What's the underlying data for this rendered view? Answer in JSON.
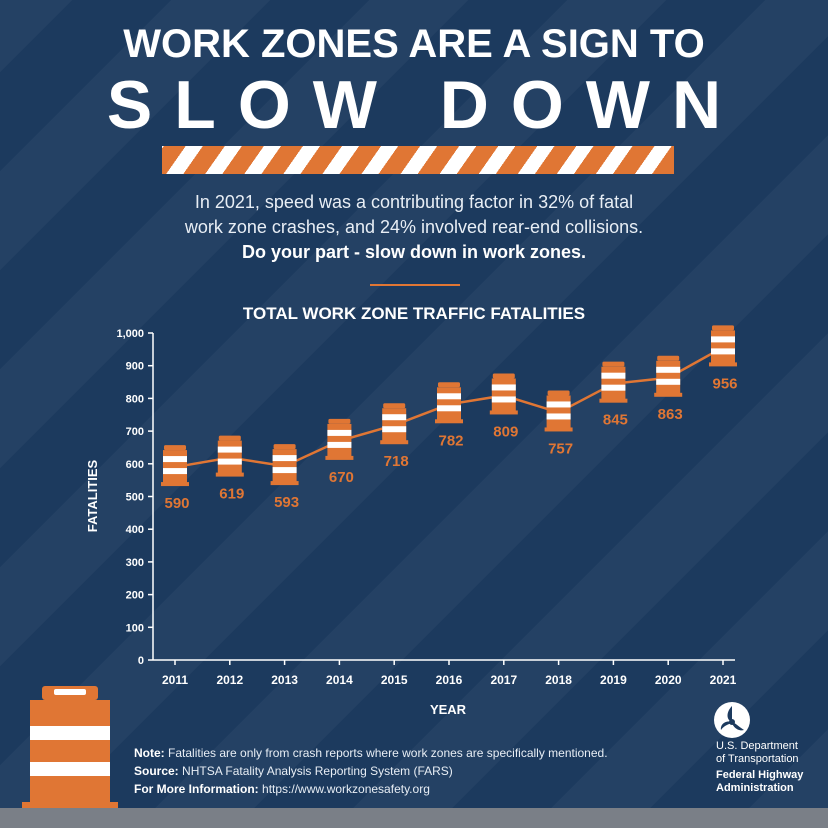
{
  "header": {
    "title_line1": "WORK ZONES ARE A SIGN TO",
    "title_line2": "SLOW DOWN"
  },
  "intro": {
    "line1": "In 2021, speed was a contributing factor in 32% of fatal",
    "line2": "work zone crashes, and 24% involved rear-end collisions.",
    "line3": "Do your part - slow down in work zones."
  },
  "colors": {
    "background": "#1c3a5e",
    "accent": "#e07634",
    "text": "#ffffff"
  },
  "chart_data": {
    "type": "line",
    "title": "TOTAL WORK ZONE TRAFFIC FATALITIES",
    "xlabel": "YEAR",
    "ylabel": "FATALITIES",
    "x": [
      "2011",
      "2012",
      "2013",
      "2014",
      "2015",
      "2016",
      "2017",
      "2018",
      "2019",
      "2020",
      "2021"
    ],
    "values": [
      590,
      619,
      593,
      670,
      718,
      782,
      809,
      757,
      845,
      863,
      956
    ],
    "ylim": [
      0,
      1000
    ],
    "yticks": [
      "0",
      "100",
      "200",
      "300",
      "400",
      "500",
      "600",
      "700",
      "800",
      "900",
      "1,000"
    ],
    "grid": false,
    "marker": "traffic-barrel-icon"
  },
  "footer": {
    "note_label": "Note:",
    "note_text": "Fatalities are only from crash reports where work zones are specifically mentioned.",
    "source_label": "Source:",
    "source_text": "NHTSA Fatality Analysis Reporting System (FARS)",
    "info_label": "For More Information:",
    "info_text": "https://www.workzonesafety.org"
  },
  "org": {
    "line1": "U.S. Department",
    "line2": "of Transportation",
    "line3": "Federal Highway",
    "line4": "Administration"
  }
}
